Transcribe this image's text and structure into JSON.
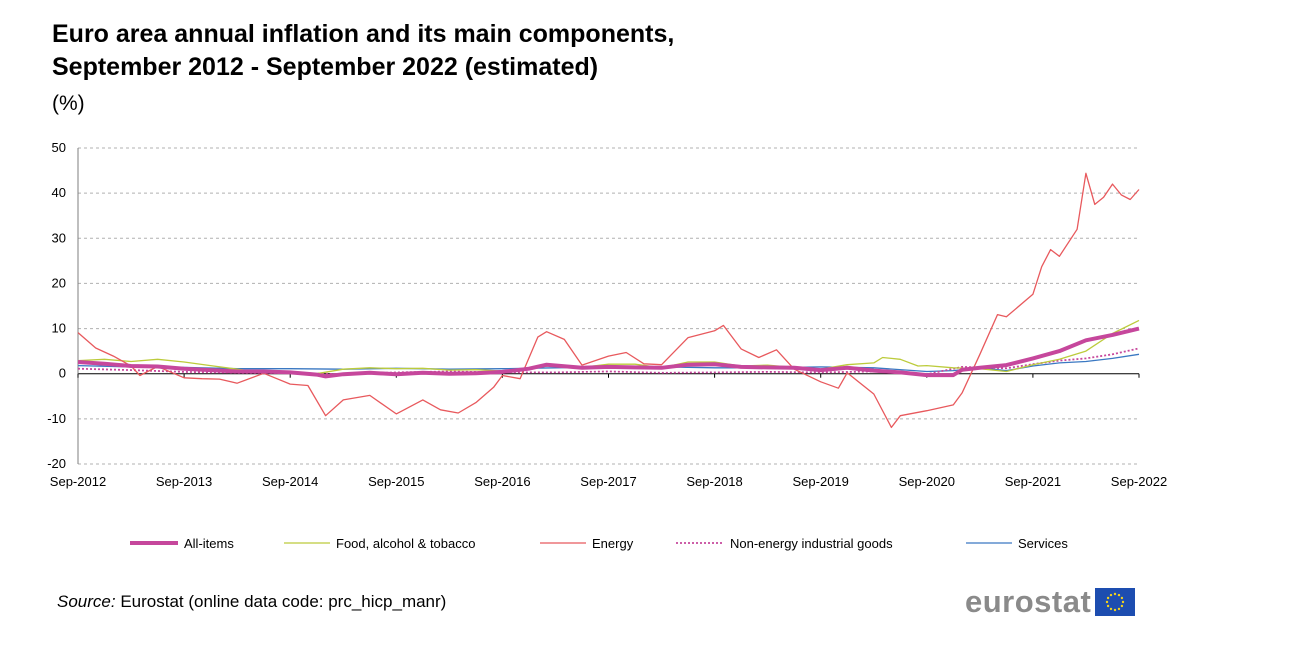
{
  "title_line1": "Euro area annual inflation and its main components,",
  "title_line2": "September 2012 - September 2022 (estimated)",
  "unit": "(%)",
  "source_label": "Source:",
  "source_text": " Eurostat (online data code: prc_hicp_manr)",
  "logo_text": "eurostat",
  "colors": {
    "all_items": "#c6479c",
    "food": "#bccb3b",
    "energy": "#e8595d",
    "neig": "#c6479c",
    "services": "#3a78c2",
    "grid": "#b0b0b0",
    "eu_blue": "#1d4db0",
    "eu_star": "#f2d21c"
  },
  "chart_data": {
    "type": "line",
    "ylim": [
      -20,
      50
    ],
    "yticks": [
      "50",
      "40",
      "30",
      "20",
      "10",
      "0",
      "-10",
      "-20"
    ],
    "ytick_values": [
      50,
      40,
      30,
      20,
      10,
      0,
      -10,
      -20
    ],
    "xlim": [
      "2012-09",
      "2022-09"
    ],
    "xticks": [
      "Sep-2012",
      "Sep-2013",
      "Sep-2014",
      "Sep-2015",
      "Sep-2016",
      "Sep-2017",
      "Sep-2018",
      "Sep-2019",
      "Sep-2020",
      "Sep-2021",
      "Sep-2022"
    ],
    "grid": "horizontal dashed",
    "legend_position": "bottom",
    "series": [
      {
        "name": "All-items",
        "style": "thick",
        "points": [
          [
            "2012-09",
            2.6
          ],
          [
            "2012-12",
            2.2
          ],
          [
            "2013-03",
            1.7
          ],
          [
            "2013-06",
            1.6
          ],
          [
            "2013-09",
            1.1
          ],
          [
            "2013-12",
            0.8
          ],
          [
            "2014-03",
            0.5
          ],
          [
            "2014-06",
            0.5
          ],
          [
            "2014-09",
            0.3
          ],
          [
            "2014-12",
            -0.2
          ],
          [
            "2015-01",
            -0.6
          ],
          [
            "2015-03",
            -0.1
          ],
          [
            "2015-06",
            0.2
          ],
          [
            "2015-09",
            -0.1
          ],
          [
            "2015-12",
            0.2
          ],
          [
            "2016-03",
            0.0
          ],
          [
            "2016-06",
            0.1
          ],
          [
            "2016-09",
            0.4
          ],
          [
            "2016-12",
            1.1
          ],
          [
            "2017-02",
            2.0
          ],
          [
            "2017-06",
            1.3
          ],
          [
            "2017-09",
            1.5
          ],
          [
            "2017-12",
            1.4
          ],
          [
            "2018-03",
            1.3
          ],
          [
            "2018-06",
            2.0
          ],
          [
            "2018-09",
            2.1
          ],
          [
            "2018-12",
            1.5
          ],
          [
            "2019-03",
            1.4
          ],
          [
            "2019-06",
            1.3
          ],
          [
            "2019-09",
            0.8
          ],
          [
            "2019-12",
            1.3
          ],
          [
            "2020-03",
            0.7
          ],
          [
            "2020-06",
            0.3
          ],
          [
            "2020-09",
            -0.3
          ],
          [
            "2020-12",
            -0.3
          ],
          [
            "2021-01",
            0.9
          ],
          [
            "2021-03",
            1.3
          ],
          [
            "2021-06",
            1.9
          ],
          [
            "2021-09",
            3.4
          ],
          [
            "2021-12",
            5.0
          ],
          [
            "2022-03",
            7.4
          ],
          [
            "2022-06",
            8.6
          ],
          [
            "2022-09",
            10.0
          ]
        ]
      },
      {
        "name": "Food, alcohol & tobacco",
        "style": "thin",
        "points": [
          [
            "2012-09",
            2.9
          ],
          [
            "2012-12",
            3.2
          ],
          [
            "2013-03",
            2.7
          ],
          [
            "2013-06",
            3.2
          ],
          [
            "2013-09",
            2.6
          ],
          [
            "2013-12",
            1.8
          ],
          [
            "2014-03",
            1.0
          ],
          [
            "2014-06",
            0.2
          ],
          [
            "2014-09",
            0.3
          ],
          [
            "2014-12",
            0.0
          ],
          [
            "2015-03",
            1.0
          ],
          [
            "2015-06",
            1.3
          ],
          [
            "2015-09",
            1.1
          ],
          [
            "2015-12",
            1.2
          ],
          [
            "2016-03",
            0.8
          ],
          [
            "2016-06",
            0.9
          ],
          [
            "2016-09",
            0.6
          ],
          [
            "2016-12",
            1.2
          ],
          [
            "2017-03",
            1.9
          ],
          [
            "2017-06",
            1.4
          ],
          [
            "2017-09",
            2.1
          ],
          [
            "2017-12",
            2.1
          ],
          [
            "2018-03",
            1.3
          ],
          [
            "2018-06",
            2.6
          ],
          [
            "2018-09",
            2.6
          ],
          [
            "2018-12",
            1.7
          ],
          [
            "2019-03",
            1.9
          ],
          [
            "2019-06",
            1.4
          ],
          [
            "2019-09",
            1.0
          ],
          [
            "2019-12",
            2.0
          ],
          [
            "2020-03",
            2.4
          ],
          [
            "2020-04",
            3.6
          ],
          [
            "2020-06",
            3.2
          ],
          [
            "2020-08",
            1.7
          ],
          [
            "2020-09",
            1.8
          ],
          [
            "2020-12",
            1.3
          ],
          [
            "2021-03",
            1.1
          ],
          [
            "2021-06",
            0.5
          ],
          [
            "2021-09",
            2.0
          ],
          [
            "2021-12",
            3.2
          ],
          [
            "2022-03",
            5.0
          ],
          [
            "2022-06",
            8.9
          ],
          [
            "2022-09",
            11.8
          ]
        ]
      },
      {
        "name": "Energy",
        "style": "thin",
        "points": [
          [
            "2012-09",
            9.1
          ],
          [
            "2012-11",
            5.7
          ],
          [
            "2013-01",
            3.9
          ],
          [
            "2013-03",
            1.7
          ],
          [
            "2013-04",
            -0.4
          ],
          [
            "2013-06",
            1.6
          ],
          [
            "2013-09",
            -0.9
          ],
          [
            "2013-11",
            -1.1
          ],
          [
            "2014-01",
            -1.2
          ],
          [
            "2014-03",
            -2.1
          ],
          [
            "2014-06",
            0.1
          ],
          [
            "2014-09",
            -2.3
          ],
          [
            "2014-11",
            -2.6
          ],
          [
            "2015-01",
            -9.3
          ],
          [
            "2015-03",
            -5.8
          ],
          [
            "2015-06",
            -4.8
          ],
          [
            "2015-09",
            -8.9
          ],
          [
            "2015-12",
            -5.8
          ],
          [
            "2016-02",
            -8.0
          ],
          [
            "2016-04",
            -8.7
          ],
          [
            "2016-06",
            -6.4
          ],
          [
            "2016-08",
            -3.0
          ],
          [
            "2016-09",
            -0.4
          ],
          [
            "2016-11",
            -1.1
          ],
          [
            "2017-01",
            8.1
          ],
          [
            "2017-02",
            9.3
          ],
          [
            "2017-04",
            7.6
          ],
          [
            "2017-06",
            1.9
          ],
          [
            "2017-09",
            3.9
          ],
          [
            "2017-11",
            4.7
          ],
          [
            "2018-01",
            2.2
          ],
          [
            "2018-03",
            2.0
          ],
          [
            "2018-06",
            8.0
          ],
          [
            "2018-09",
            9.5
          ],
          [
            "2018-10",
            10.7
          ],
          [
            "2018-12",
            5.5
          ],
          [
            "2019-02",
            3.6
          ],
          [
            "2019-04",
            5.3
          ],
          [
            "2019-06",
            1.0
          ],
          [
            "2019-09",
            -1.8
          ],
          [
            "2019-11",
            -3.2
          ],
          [
            "2019-12",
            0.2
          ],
          [
            "2020-03",
            -4.5
          ],
          [
            "2020-05",
            -11.9
          ],
          [
            "2020-06",
            -9.3
          ],
          [
            "2020-09",
            -8.2
          ],
          [
            "2020-12",
            -6.9
          ],
          [
            "2021-01",
            -4.2
          ],
          [
            "2021-03",
            4.3
          ],
          [
            "2021-05",
            13.1
          ],
          [
            "2021-06",
            12.6
          ],
          [
            "2021-09",
            17.6
          ],
          [
            "2021-10",
            23.7
          ],
          [
            "2021-11",
            27.5
          ],
          [
            "2021-12",
            26.0
          ],
          [
            "2022-02",
            32.0
          ],
          [
            "2022-03",
            44.4
          ],
          [
            "2022-04",
            37.5
          ],
          [
            "2022-05",
            39.1
          ],
          [
            "2022-06",
            42.0
          ],
          [
            "2022-07",
            39.6
          ],
          [
            "2022-08",
            38.6
          ],
          [
            "2022-09",
            40.8
          ]
        ]
      },
      {
        "name": "Non-energy industrial goods",
        "style": "dotted",
        "points": [
          [
            "2012-09",
            1.1
          ],
          [
            "2013-03",
            0.8
          ],
          [
            "2013-09",
            0.4
          ],
          [
            "2014-03",
            0.2
          ],
          [
            "2014-09",
            0.2
          ],
          [
            "2015-03",
            -0.1
          ],
          [
            "2015-09",
            0.3
          ],
          [
            "2016-03",
            0.5
          ],
          [
            "2016-09",
            0.3
          ],
          [
            "2017-03",
            0.3
          ],
          [
            "2017-09",
            0.5
          ],
          [
            "2018-03",
            0.2
          ],
          [
            "2018-09",
            0.3
          ],
          [
            "2019-03",
            0.4
          ],
          [
            "2019-09",
            0.3
          ],
          [
            "2020-03",
            0.5
          ],
          [
            "2020-09",
            -0.1
          ],
          [
            "2021-01",
            1.5
          ],
          [
            "2021-06",
            1.2
          ],
          [
            "2021-09",
            2.1
          ],
          [
            "2021-12",
            2.9
          ],
          [
            "2022-03",
            3.4
          ],
          [
            "2022-06",
            4.3
          ],
          [
            "2022-09",
            5.6
          ]
        ]
      },
      {
        "name": "Services",
        "style": "thin",
        "points": [
          [
            "2012-09",
            1.8
          ],
          [
            "2013-03",
            1.5
          ],
          [
            "2013-09",
            1.4
          ],
          [
            "2014-03",
            1.1
          ],
          [
            "2014-09",
            1.1
          ],
          [
            "2015-03",
            1.0
          ],
          [
            "2015-09",
            1.2
          ],
          [
            "2016-03",
            1.0
          ],
          [
            "2016-09",
            1.1
          ],
          [
            "2017-03",
            1.3
          ],
          [
            "2017-09",
            1.5
          ],
          [
            "2018-03",
            1.5
          ],
          [
            "2018-09",
            1.3
          ],
          [
            "2019-03",
            1.3
          ],
          [
            "2019-09",
            1.5
          ],
          [
            "2020-03",
            1.3
          ],
          [
            "2020-09",
            0.5
          ],
          [
            "2020-12",
            0.7
          ],
          [
            "2021-03",
            1.3
          ],
          [
            "2021-06",
            0.7
          ],
          [
            "2021-09",
            1.7
          ],
          [
            "2021-12",
            2.4
          ],
          [
            "2022-03",
            2.7
          ],
          [
            "2022-06",
            3.4
          ],
          [
            "2022-09",
            4.3
          ]
        ]
      }
    ]
  }
}
